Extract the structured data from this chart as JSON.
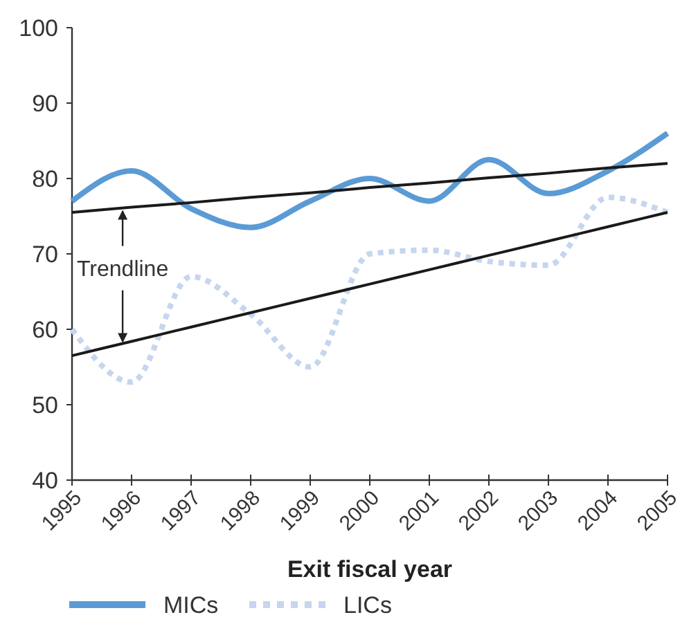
{
  "chart_data": {
    "type": "line",
    "xlabel": "Exit fiscal year",
    "x": [
      1995,
      1996,
      1997,
      1998,
      1999,
      2000,
      2001,
      2002,
      2003,
      2004,
      2005
    ],
    "xlim": [
      1995,
      2005
    ],
    "xticks": [
      1995,
      1996,
      1997,
      1998,
      1999,
      2000,
      2001,
      2002,
      2003,
      2004,
      2005
    ],
    "ylim": [
      40,
      100
    ],
    "yticks": [
      40,
      50,
      60,
      70,
      80,
      90,
      100
    ],
    "legend": "bottom",
    "grid": false,
    "series": [
      {
        "name": "MICs",
        "color": "#5b9bd5",
        "line_style": "solid",
        "values": [
          77,
          81,
          76,
          73.5,
          77,
          80,
          77,
          82.5,
          78,
          81,
          86
        ]
      },
      {
        "name": "LICs",
        "color": "#c5d6ee",
        "line_style": "dashed",
        "values": [
          60,
          53,
          67,
          62,
          55,
          70,
          70.5,
          69,
          68.5,
          77.5,
          75.5
        ]
      },
      {
        "color": "#1a1a1a",
        "line_style": "solid",
        "values": [
          75.5,
          76.2,
          76.8,
          77.5,
          78.1,
          78.8,
          79.4,
          80.1,
          80.7,
          81.4,
          82
        ]
      },
      {
        "color": "#1a1a1a",
        "line_style": "solid",
        "values": [
          56.5,
          58.4,
          60.3,
          62.2,
          64.1,
          66,
          67.9,
          69.8,
          71.7,
          73.6,
          75.5
        ]
      }
    ],
    "annotations": [
      {
        "text": "Trendline",
        "x": 1995.85,
        "y": 76
      }
    ]
  }
}
